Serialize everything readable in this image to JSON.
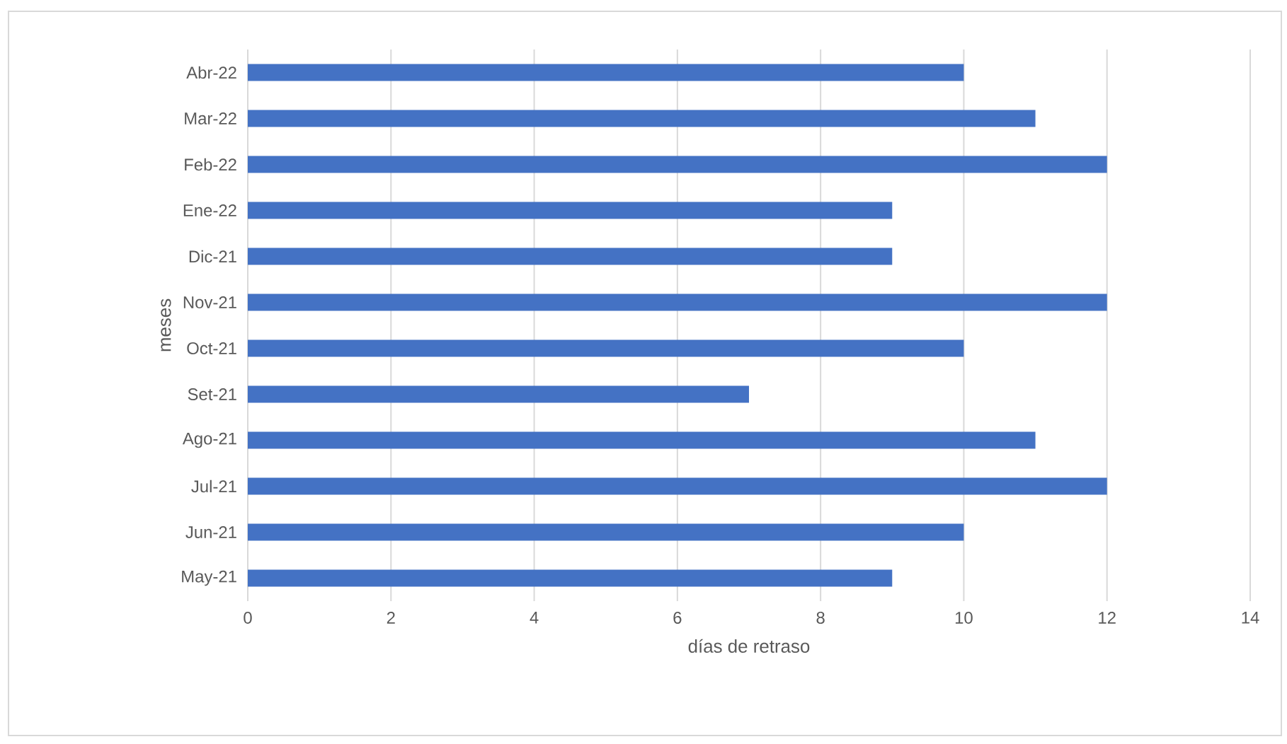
{
  "chart_data": {
    "type": "bar",
    "orientation": "horizontal",
    "categories": [
      "Abr-22",
      "Mar-22",
      "Feb-22",
      "Ene-22",
      "Dic-21",
      "Nov-21",
      "Oct-21",
      "Set-21",
      "Ago-21",
      "Jul-21",
      "Jun-21",
      "May-21"
    ],
    "values": [
      10,
      11,
      12,
      9,
      9,
      12,
      10,
      7,
      11,
      12,
      10,
      9
    ],
    "color": "#4472c4",
    "xlim": [
      0,
      14
    ],
    "xticks": [
      0,
      2,
      4,
      6,
      8,
      10,
      12,
      14
    ],
    "xlabel": "días de retraso",
    "ylabel": "meses",
    "grid": "x"
  }
}
